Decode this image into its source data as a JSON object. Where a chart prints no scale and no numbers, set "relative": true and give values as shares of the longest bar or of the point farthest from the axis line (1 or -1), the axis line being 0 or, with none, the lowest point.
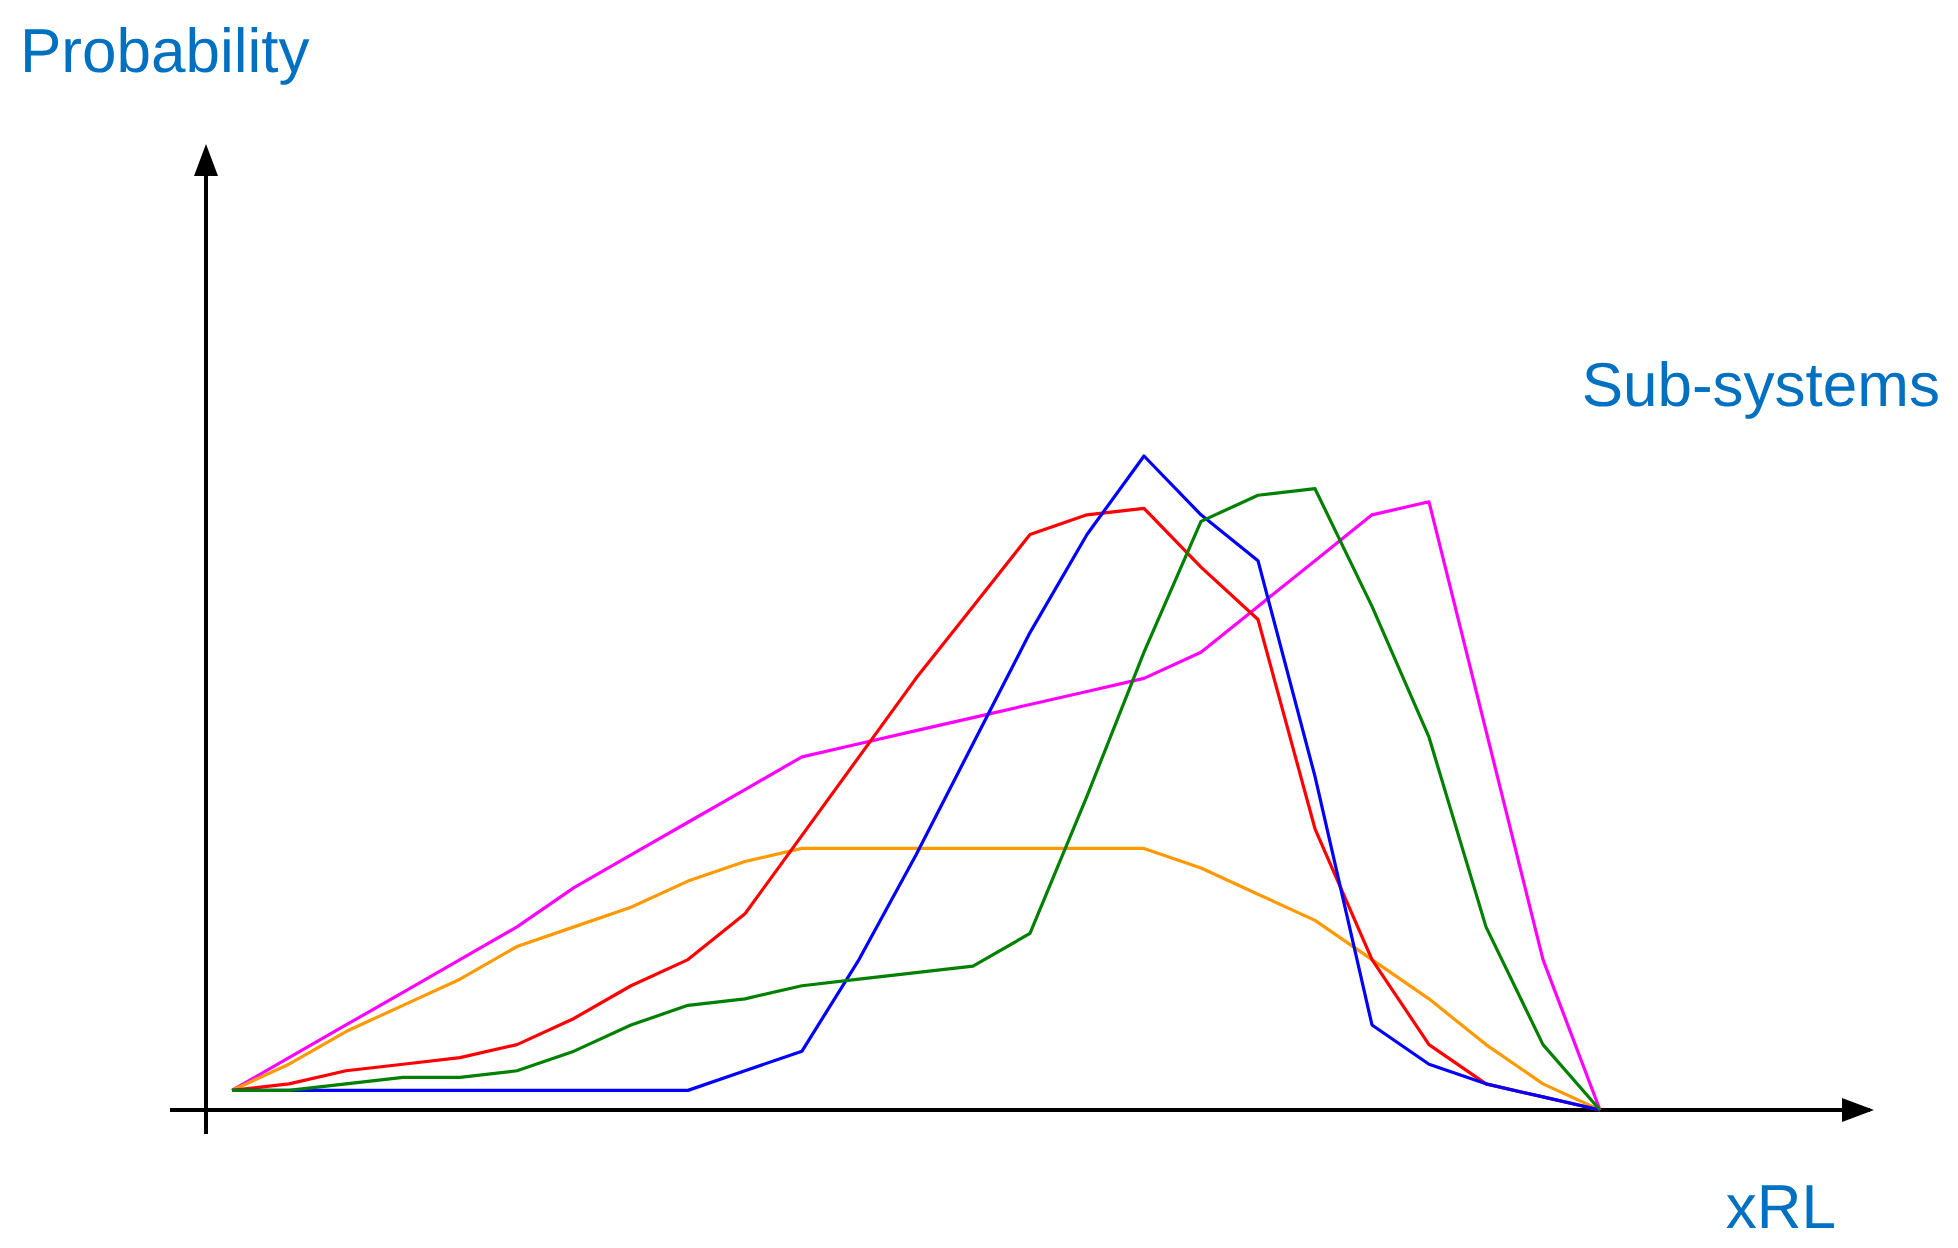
{
  "chart_data": {
    "type": "line",
    "relative": true,
    "xlabel": "xRL",
    "annotations": [
      "Probability",
      "Sub-systems"
    ],
    "marker": "none",
    "line_style": "solid",
    "categories": [
      null,
      null,
      null,
      null,
      null,
      null,
      null,
      null,
      null,
      null,
      null,
      null,
      null,
      null,
      null,
      null,
      null,
      null,
      null,
      null,
      null,
      null,
      null,
      null,
      null
    ],
    "series": [
      {
        "color": "#ff00ff",
        "values": [
          0.03,
          0.08,
          0.13,
          0.18,
          0.23,
          0.28,
          0.34,
          0.39,
          0.44,
          0.49,
          0.54,
          0.56,
          0.58,
          0.6,
          0.62,
          0.64,
          0.66,
          0.7,
          0.77,
          0.84,
          0.91,
          0.93,
          0.58,
          0.23,
          0
        ]
      },
      {
        "color": "#ff9900",
        "values": [
          0.03,
          0.07,
          0.12,
          0.16,
          0.2,
          0.25,
          0.28,
          0.31,
          0.35,
          0.38,
          0.4,
          0.4,
          0.4,
          0.4,
          0.4,
          0.4,
          0.4,
          0.37,
          0.33,
          0.29,
          0.23,
          0.17,
          0.1,
          0.04,
          0
        ]
      },
      {
        "color": "#ff0000",
        "values": [
          0.03,
          0.04,
          0.06,
          0.07,
          0.08,
          0.1,
          0.14,
          0.19,
          0.23,
          0.3,
          0.42,
          0.54,
          0.66,
          0.77,
          0.88,
          0.91,
          0.92,
          0.83,
          0.75,
          0.43,
          0.23,
          0.1,
          0.04,
          0.02,
          0
        ]
      },
      {
        "color": "#0000ff",
        "values": [
          0.03,
          0.03,
          0.03,
          0.03,
          0.03,
          0.03,
          0.03,
          0.03,
          0.03,
          0.06,
          0.09,
          0.23,
          0.39,
          0.56,
          0.73,
          0.88,
          1,
          0.91,
          0.84,
          0.51,
          0.13,
          0.07,
          0.04,
          0.02,
          0
        ]
      },
      {
        "color": "#008000",
        "values": [
          0.03,
          0.03,
          0.04,
          0.05,
          0.05,
          0.06,
          0.09,
          0.13,
          0.16,
          0.17,
          0.19,
          0.2,
          0.21,
          0.22,
          0.27,
          0.48,
          0.7,
          0.9,
          0.94,
          0.95,
          0.77,
          0.57,
          0.28,
          0.1,
          0
        ]
      }
    ]
  }
}
